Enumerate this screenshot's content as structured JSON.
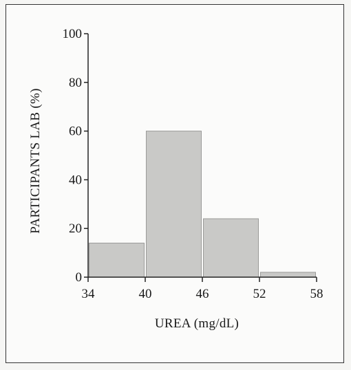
{
  "chart_data": {
    "type": "bar",
    "title": "",
    "xlabel": "UREA  (mg/dL)",
    "ylabel": "PARTICIPANTS LAB (%)",
    "x_ticks": [
      34,
      40,
      46,
      52,
      58
    ],
    "y_ticks": [
      0,
      20,
      40,
      60,
      80,
      100
    ],
    "xlim": [
      34,
      58
    ],
    "ylim": [
      0,
      100
    ],
    "bins": [
      {
        "start": 34,
        "end": 40,
        "value": 14
      },
      {
        "start": 40,
        "end": 46,
        "value": 60
      },
      {
        "start": 46,
        "end": 52,
        "value": 24
      },
      {
        "start": 52,
        "end": 58,
        "value": 2
      }
    ],
    "grid": false,
    "colors": {
      "bar_fill": "#c9c9c7",
      "bar_stroke": "#9a9a98",
      "axis": "#222222"
    }
  }
}
